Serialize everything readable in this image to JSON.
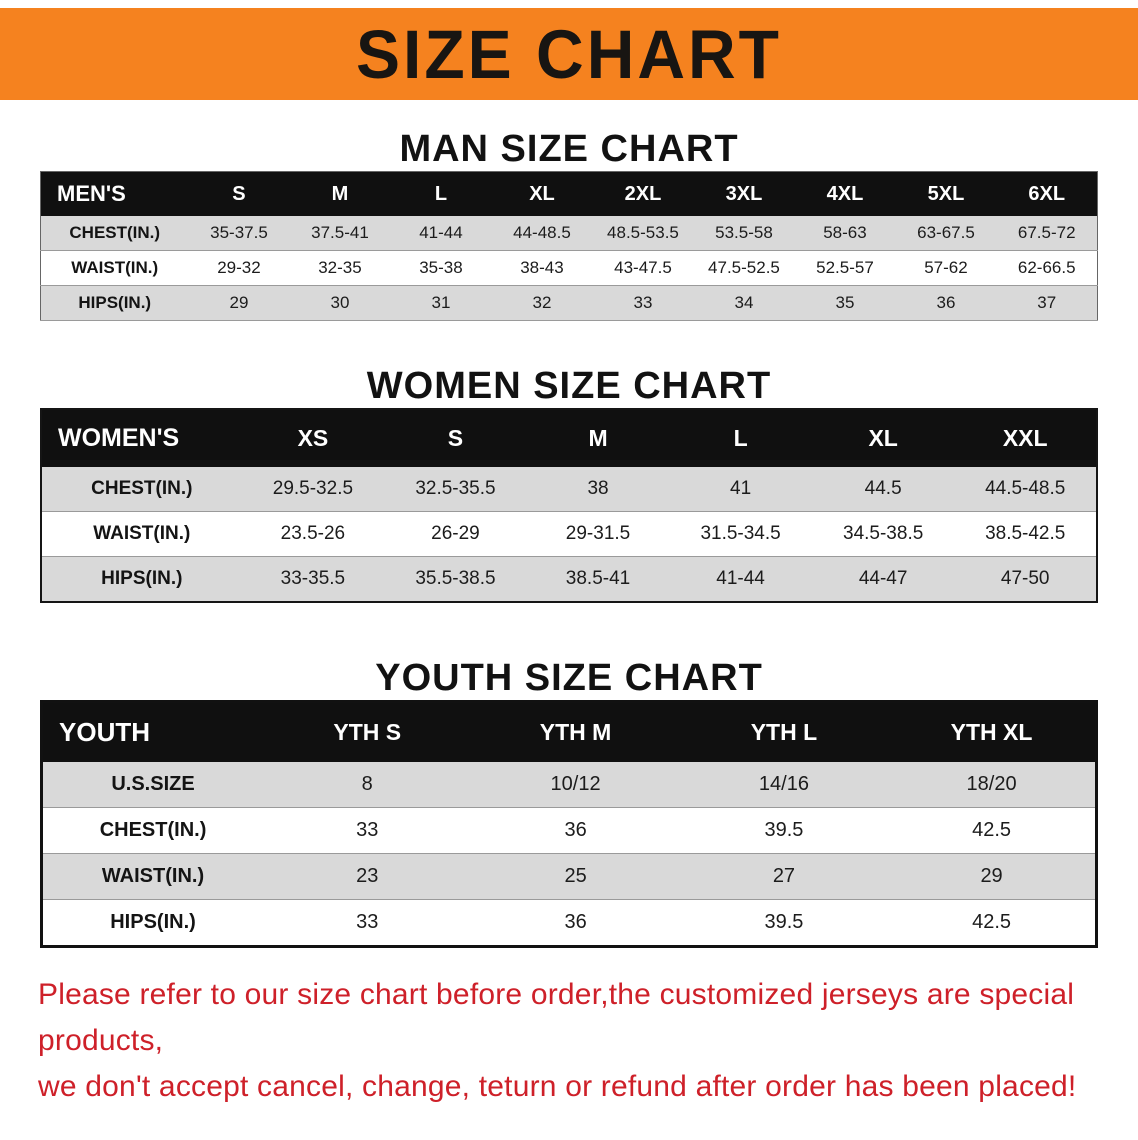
{
  "banner": {
    "title": "SIZE CHART"
  },
  "colors": {
    "banner_bg": "#F5821F",
    "table_header_bg": "#101010",
    "row_alt_gray": "#D9D9D9",
    "footer_red": "#CE2029"
  },
  "sections": [
    {
      "heading": "MAN SIZE CHART",
      "table": {
        "header": [
          "MEN'S",
          "S",
          "M",
          "L",
          "XL",
          "2XL",
          "3XL",
          "4XL",
          "5XL",
          "6XL"
        ],
        "rows": [
          [
            "CHEST(IN.)",
            "35-37.5",
            "37.5-41",
            "41-44",
            "44-48.5",
            "48.5-53.5",
            "53.5-58",
            "58-63",
            "63-67.5",
            "67.5-72"
          ],
          [
            "WAIST(IN.)",
            "29-32",
            "32-35",
            "35-38",
            "38-43",
            "43-47.5",
            "47.5-52.5",
            "52.5-57",
            "57-62",
            "62-66.5"
          ],
          [
            "HIPS(IN.)",
            "29",
            "30",
            "31",
            "32",
            "33",
            "34",
            "35",
            "36",
            "37"
          ]
        ]
      }
    },
    {
      "heading": "WOMEN SIZE CHART",
      "table": {
        "header": [
          "WOMEN'S",
          "XS",
          "S",
          "M",
          "L",
          "XL",
          "XXL"
        ],
        "rows": [
          [
            "CHEST(IN.)",
            "29.5-32.5",
            "32.5-35.5",
            "38",
            "41",
            "44.5",
            "44.5-48.5"
          ],
          [
            "WAIST(IN.)",
            "23.5-26",
            "26-29",
            "29-31.5",
            "31.5-34.5",
            "34.5-38.5",
            "38.5-42.5"
          ],
          [
            "HIPS(IN.)",
            "33-35.5",
            "35.5-38.5",
            "38.5-41",
            "41-44",
            "44-47",
            "47-50"
          ]
        ]
      }
    },
    {
      "heading": "YOUTH SIZE CHART",
      "table": {
        "header": [
          "YOUTH",
          "YTH S",
          "YTH M",
          "YTH L",
          "YTH XL"
        ],
        "rows": [
          [
            "U.S.SIZE",
            "8",
            "10/12",
            "14/16",
            "18/20"
          ],
          [
            "CHEST(IN.)",
            "33",
            "36",
            "39.5",
            "42.5"
          ],
          [
            "WAIST(IN.)",
            "23",
            "25",
            "27",
            "29"
          ],
          [
            "HIPS(IN.)",
            "33",
            "36",
            "39.5",
            "42.5"
          ]
        ]
      }
    }
  ],
  "footer": {
    "line1": "Please refer to our size chart before order,the customized jerseys are special products,",
    "line2": "we don't accept cancel, change, teturn or refund after order has been placed!"
  }
}
